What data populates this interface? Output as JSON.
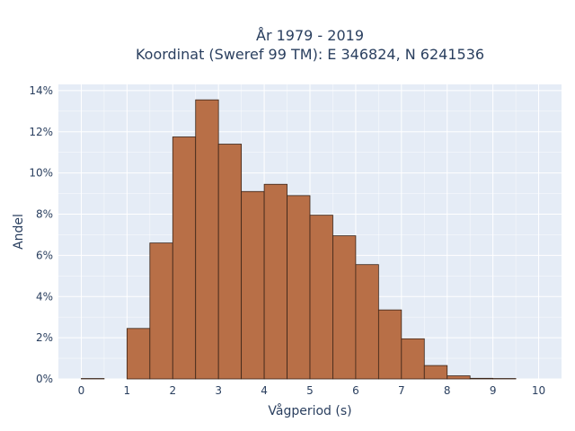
{
  "chart_data": {
    "type": "bar",
    "title_line1": "År 1979 - 2019",
    "title_line2": "Koordinat (Sweref 99 TM): E 346824, N 6241536",
    "xlabel": "Vågperiod (s)",
    "ylabel": "Andel",
    "bin_width": 0.5,
    "bin_starts": [
      0,
      0.5,
      1,
      1.5,
      2,
      2.5,
      3,
      3.5,
      4,
      4.5,
      5,
      5.5,
      6,
      6.5,
      7,
      7.5,
      8,
      8.5,
      9,
      9.5
    ],
    "values": [
      0.02,
      0,
      2.45,
      6.6,
      11.75,
      13.55,
      11.4,
      9.1,
      9.45,
      8.9,
      7.95,
      6.95,
      5.55,
      3.35,
      1.95,
      0.65,
      0.15,
      0.03,
      0.02,
      0
    ],
    "xlim": [
      -0.5,
      10.5
    ],
    "ylim": [
      0,
      14.3
    ],
    "xticks": [
      "0",
      "1",
      "2",
      "3",
      "4",
      "5",
      "6",
      "7",
      "8",
      "9",
      "10"
    ],
    "yticks": [
      "0%",
      "2%",
      "4%",
      "6%",
      "8%",
      "10%",
      "12%",
      "14%"
    ],
    "colors": {
      "bar": "#b86f47",
      "bar_edge": "#3a2418",
      "plot_bg": "#e5ecf6",
      "grid": "#ffffff",
      "text": "#2a3f5f"
    },
    "grid": true,
    "legend": "none"
  }
}
